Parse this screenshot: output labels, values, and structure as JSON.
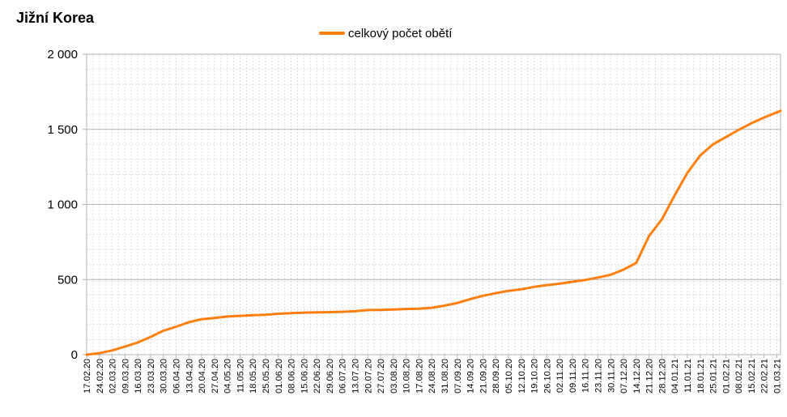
{
  "chart_data": {
    "type": "line",
    "title": "Jižní Korea",
    "xlabel": "",
    "ylabel": "",
    "ylim": [
      0,
      2000
    ],
    "yticks": [
      0,
      500,
      1000,
      1500,
      2000
    ],
    "ytick_labels": [
      "0",
      "500",
      "1 000",
      "1 500",
      "2 000"
    ],
    "grid": true,
    "legend_position": "top-center",
    "colors": {
      "series": "#ff7f0e",
      "grid_major": "#b3b3b3",
      "grid_minor": "#dddddd"
    },
    "x_start": "17.02.20",
    "x_end": "03.03.21",
    "x_tick_labels": [
      "17.02.20",
      "24.02.20",
      "02.03.20",
      "09.03.20",
      "16.03.20",
      "23.03.20",
      "30.03.20",
      "06.04.20",
      "13.04.20",
      "20.04.20",
      "27.04.20",
      "04.05.20",
      "11.05.20",
      "18.05.20",
      "25.05.20",
      "01.06.20",
      "08.06.20",
      "15.06.20",
      "22.06.20",
      "29.06.20",
      "06.07.20",
      "13.07.20",
      "20.07.20",
      "27.07.20",
      "03.08.20",
      "10.08.20",
      "17.08.20",
      "24.08.20",
      "31.08.20",
      "07.09.20",
      "14.09.20",
      "21.09.20",
      "28.09.20",
      "05.10.20",
      "12.10.20",
      "19.10.20",
      "26.10.20",
      "02.11.20",
      "09.11.20",
      "16.11.20",
      "23.11.20",
      "30.11.20",
      "07.12.20",
      "14.12.20",
      "21.12.20",
      "28.12.20",
      "04.01.21",
      "11.01.21",
      "18.01.21",
      "25.01.21",
      "01.02.21",
      "08.02.21",
      "15.02.21",
      "22.02.21",
      "01.03.21"
    ],
    "series": [
      {
        "name": "celkový počet obětí",
        "x": [
          "17.02.20",
          "24.02.20",
          "02.03.20",
          "09.03.20",
          "16.03.20",
          "23.03.20",
          "30.03.20",
          "06.04.20",
          "13.04.20",
          "20.04.20",
          "27.04.20",
          "04.05.20",
          "11.05.20",
          "18.05.20",
          "25.05.20",
          "01.06.20",
          "08.06.20",
          "15.06.20",
          "22.06.20",
          "29.06.20",
          "06.07.20",
          "13.07.20",
          "20.07.20",
          "27.07.20",
          "03.08.20",
          "10.08.20",
          "17.08.20",
          "24.08.20",
          "31.08.20",
          "07.09.20",
          "14.09.20",
          "21.09.20",
          "28.09.20",
          "05.10.20",
          "12.10.20",
          "19.10.20",
          "26.10.20",
          "02.11.20",
          "09.11.20",
          "16.11.20",
          "23.11.20",
          "30.11.20",
          "07.12.20",
          "14.12.20",
          "21.12.20",
          "28.12.20",
          "04.01.21",
          "11.01.21",
          "18.01.21",
          "25.01.21",
          "01.02.21",
          "08.02.21",
          "15.02.21",
          "22.02.21",
          "01.03.21",
          "03.03.21"
        ],
        "values": [
          0,
          10,
          28,
          54,
          81,
          118,
          159,
          186,
          216,
          236,
          244,
          254,
          258,
          263,
          266,
          272,
          276,
          280,
          282,
          283,
          285,
          289,
          297,
          298,
          301,
          304,
          306,
          312,
          326,
          344,
          370,
          392,
          409,
          425,
          435,
          451,
          463,
          472,
          485,
          497,
          513,
          532,
          566,
          611,
          790,
          900,
          1060,
          1211,
          1326,
          1400,
          1448,
          1496,
          1540,
          1579,
          1613,
          1623
        ]
      }
    ]
  }
}
